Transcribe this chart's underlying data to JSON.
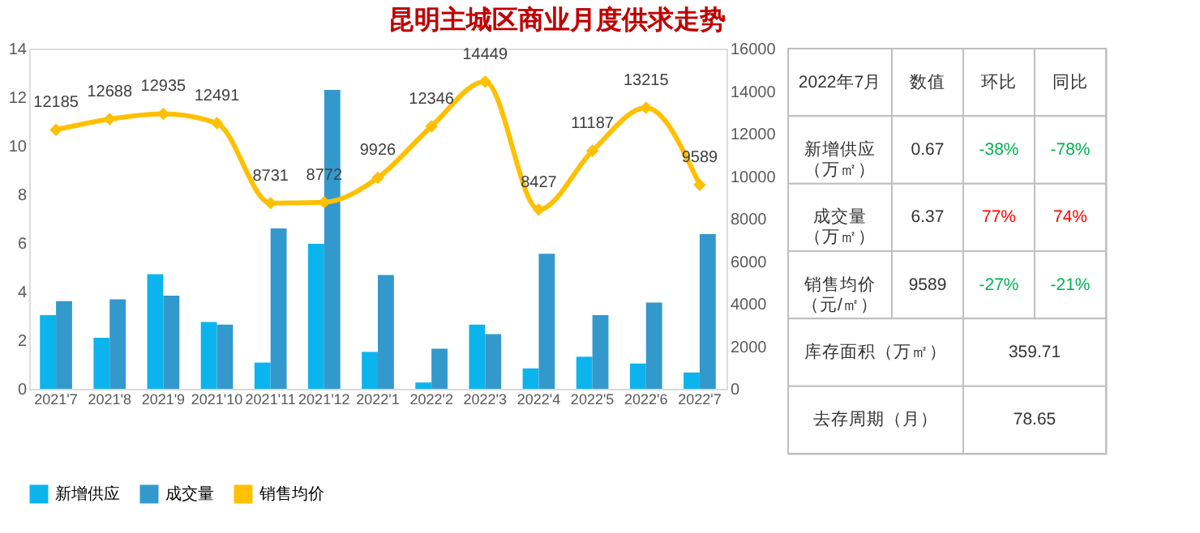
{
  "chart_data": [
    {
      "type": "bar",
      "title": "昆明主城区商业月度供求走势",
      "categories": [
        "2021'7",
        "2021'8",
        "2021'9",
        "2021'10",
        "2021'11",
        "2021'12",
        "2022'1",
        "2022'2",
        "2022'3",
        "2022'4",
        "2022'5",
        "2022'6",
        "2022'7"
      ],
      "series": [
        {
          "name": "新增供应",
          "color": "#0cb4ee",
          "values": [
            3.03,
            2.1,
            4.72,
            2.75,
            1.08,
            5.97,
            1.52,
            0.26,
            2.64,
            0.84,
            1.32,
            1.04,
            0.67
          ]
        },
        {
          "name": "成交量",
          "color": "#3399cc",
          "values": [
            3.61,
            3.68,
            3.83,
            2.64,
            6.6,
            12.3,
            4.68,
            1.65,
            2.25,
            5.56,
            3.03,
            3.55,
            6.37
          ]
        },
        {
          "name": "销售均价",
          "color": "#ffc000",
          "type": "line",
          "axis": "y2",
          "marker": "diamond",
          "values": [
            12185,
            12688,
            12935,
            12491,
            8731,
            8772,
            9926,
            12346,
            14449,
            8427,
            11187,
            13215,
            9589
          ],
          "value_labels": [
            "12185",
            "12688",
            "12935",
            "12491",
            "8731",
            "8772",
            "9926",
            "12346",
            "14449",
            "8427",
            "11187",
            "13215",
            "9589"
          ]
        }
      ],
      "ylim": [
        0,
        14
      ],
      "yticks": [
        0,
        2,
        4,
        6,
        8,
        10,
        12,
        14
      ],
      "y2lim": [
        0,
        16000
      ],
      "y2ticks": [
        0,
        2000,
        4000,
        6000,
        8000,
        10000,
        12000,
        14000,
        16000
      ],
      "legend": "bottom",
      "grid": false
    },
    {
      "type": "other",
      "annotations": [
        "2022年7月",
        "数值",
        "环比",
        "同比",
        "新增供应（万㎡）",
        "0.67",
        "-38%",
        "-78%",
        "成交量（万㎡）",
        "6.37",
        "77%",
        "74%",
        "销售均价（元/㎡）",
        "9589",
        "-27%",
        "-21%",
        "库存面积（万㎡）",
        "359.71",
        "去存周期（月）",
        "78.65"
      ],
      "colors": [
        "#333333",
        "#333333",
        "#333333",
        "#333333",
        "#333333",
        "#333333",
        "#00b050",
        "#00b050",
        "#333333",
        "#333333",
        "#ff0000",
        "#ff0000",
        "#333333",
        "#333333",
        "#00b050",
        "#00b050",
        "#333333",
        "#333333",
        "#333333",
        "#333333"
      ]
    }
  ]
}
